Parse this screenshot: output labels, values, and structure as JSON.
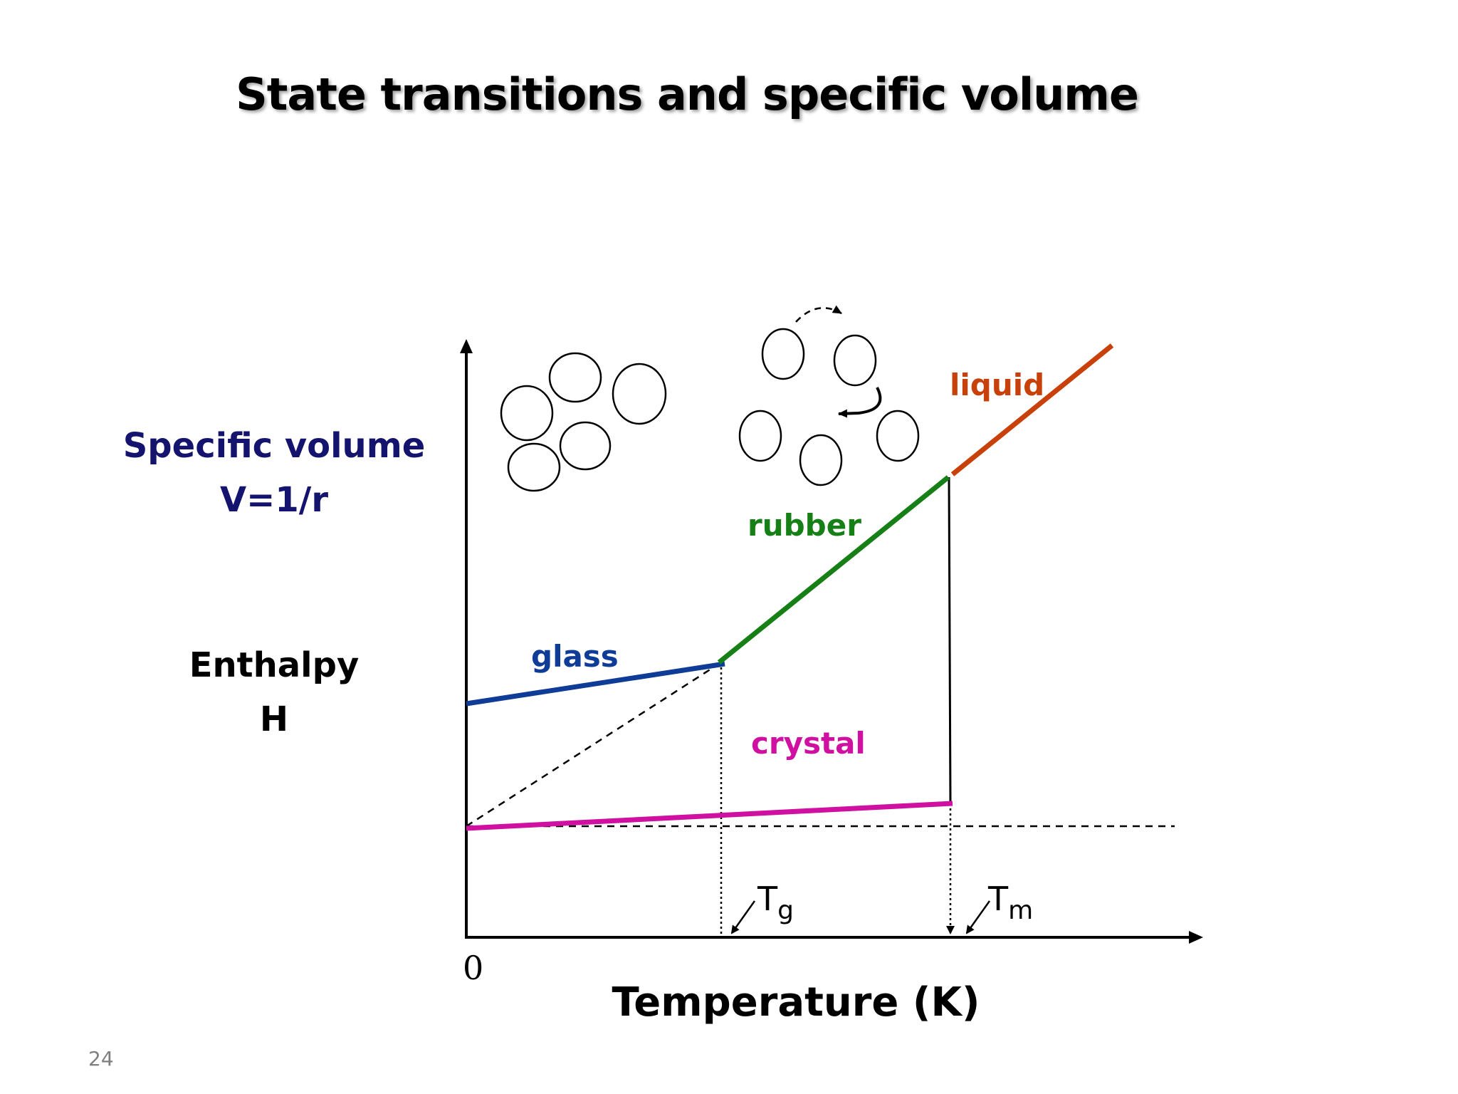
{
  "slide": {
    "title": "State transitions and specific volume",
    "number": "24"
  },
  "y_axis": {
    "label_line1": "Specific volume",
    "label_line2": "V=1/r",
    "label2_line1": "Enthalpy",
    "label2_line2": "H",
    "color_volume": "#14146e"
  },
  "x_axis": {
    "label": "Temperature (K)",
    "origin": "0",
    "tg_main": "T",
    "tg_sub": "g",
    "tm_main": "T",
    "tm_sub": "m"
  },
  "phases": {
    "glass": {
      "label": "glass",
      "color": "#0f3c96"
    },
    "rubber": {
      "label": "rubber",
      "color": "#168016"
    },
    "liquid": {
      "label": "liquid",
      "color": "#c8400a"
    },
    "crystal": {
      "label": "crystal",
      "color": "#d010a0"
    }
  }
}
